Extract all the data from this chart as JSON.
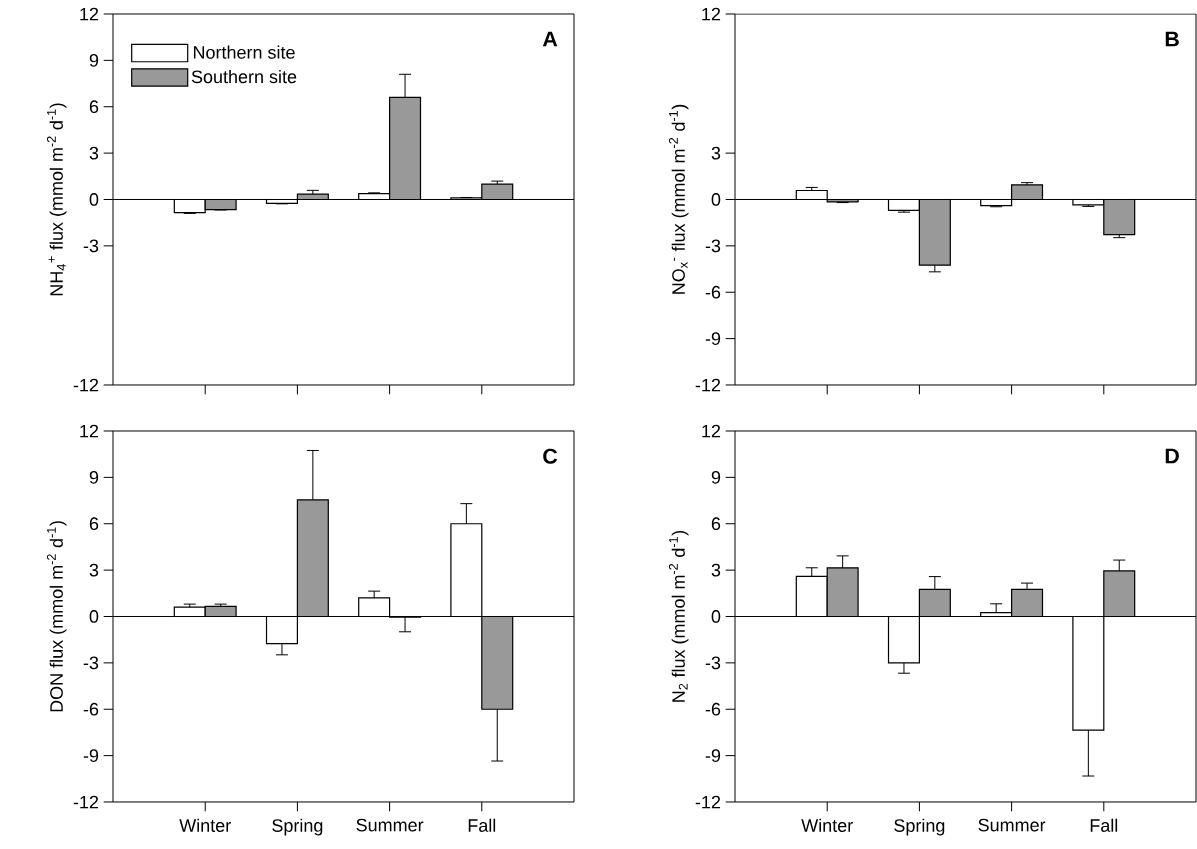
{
  "chart_data": [
    {
      "type": "bar",
      "title": "A",
      "ylabel": "NH$_{4}$$^{+}$ flux (mmol m$^{-2}$ d$^{-1}$)",
      "categories": [
        null,
        null,
        null,
        null
      ],
      "tick_labels": "y",
      "legend": "top left",
      "ylim": [
        -12,
        12
      ],
      "yticks": [
        -12,
        -3,
        0,
        3,
        6,
        9,
        12
      ],
      "series": [
        {
          "name": "Northern site",
          "color": "#ffffff",
          "values": [
            -0.85,
            -0.25,
            0.38,
            0.1
          ],
          "errors": [
            [
              -0.9,
              -0.85
            ],
            [
              -0.28,
              -0.25
            ],
            [
              0.38,
              0.43
            ],
            [
              0.1,
              0.13
            ]
          ]
        },
        {
          "name": "Southern site",
          "color": "#999999",
          "values": [
            -0.65,
            0.35,
            6.6,
            1.0
          ],
          "errors": [
            [
              -0.68,
              -0.65
            ],
            [
              0.35,
              0.59
            ],
            [
              6.6,
              8.1
            ],
            [
              1.0,
              1.19
            ]
          ]
        }
      ]
    },
    {
      "type": "bar",
      "title": "B",
      "ylabel": "NO$_{x}$$^{-}$ flux (mmol m$^{-2}$ d$^{-1}$)",
      "categories": [
        null,
        null,
        null,
        null
      ],
      "tick_labels": "y",
      "ylim": [
        -12,
        12
      ],
      "yticks": [
        -12,
        -9,
        -6,
        -3,
        0,
        3,
        12
      ],
      "series": [
        {
          "color": "#ffffff",
          "values": [
            0.58,
            -0.7,
            -0.4,
            -0.35
          ],
          "errors": [
            [
              0.58,
              0.78
            ],
            [
              -0.82,
              -0.7
            ],
            [
              -0.47,
              -0.4
            ],
            [
              -0.45,
              -0.35
            ]
          ]
        },
        {
          "color": "#999999",
          "values": [
            -0.15,
            -4.25,
            0.95,
            -2.27
          ],
          "errors": [
            [
              -0.2,
              -0.15
            ],
            [
              -4.68,
              -4.25
            ],
            [
              0.95,
              1.09
            ],
            [
              -2.47,
              -2.27
            ]
          ]
        }
      ]
    },
    {
      "type": "bar",
      "title": "C",
      "ylabel": "DON flux (mmol m$^{-2}$ d$^{-1}$)",
      "categories": [
        "Winter",
        "Spring",
        "Summer",
        "Fall"
      ],
      "ylim": [
        -12,
        12
      ],
      "yticks": [
        -12,
        -9,
        -6,
        -3,
        0,
        3,
        6,
        9,
        12
      ],
      "series": [
        {
          "color": "#ffffff",
          "values": [
            0.6,
            -1.75,
            1.2,
            6.0
          ],
          "errors": [
            [
              0.6,
              0.8
            ],
            [
              -2.48,
              -1.75
            ],
            [
              1.2,
              1.64
            ],
            [
              6.0,
              7.3
            ]
          ]
        },
        {
          "color": "#999999",
          "values": [
            0.65,
            7.55,
            -0.05,
            -6.0
          ],
          "errors": [
            [
              0.65,
              0.8
            ],
            [
              7.55,
              10.74
            ],
            [
              -0.99,
              -0.05
            ],
            [
              -9.35,
              -6.0
            ]
          ]
        }
      ]
    },
    {
      "type": "bar",
      "title": "D",
      "ylabel": "N$_{2}$ flux (mmol m$^{-2}$ d$^{-1}$)",
      "categories": [
        "Winter",
        "Spring",
        "Summer",
        "Fall"
      ],
      "ylim": [
        -12,
        12
      ],
      "yticks": [
        -12,
        -9,
        -6,
        -3,
        0,
        3,
        6,
        9,
        12
      ],
      "series": [
        {
          "color": "#ffffff",
          "values": [
            2.6,
            -3.0,
            0.25,
            -7.35
          ],
          "errors": [
            [
              2.6,
              3.15
            ],
            [
              -3.67,
              -3.0
            ],
            [
              0.25,
              0.82
            ],
            [
              -10.32,
              -7.35
            ]
          ]
        },
        {
          "color": "#999999",
          "values": [
            3.15,
            1.75,
            1.75,
            2.95
          ],
          "errors": [
            [
              3.15,
              3.92
            ],
            [
              1.75,
              2.58
            ],
            [
              1.75,
              2.16
            ],
            [
              2.95,
              3.65
            ]
          ]
        }
      ]
    }
  ]
}
